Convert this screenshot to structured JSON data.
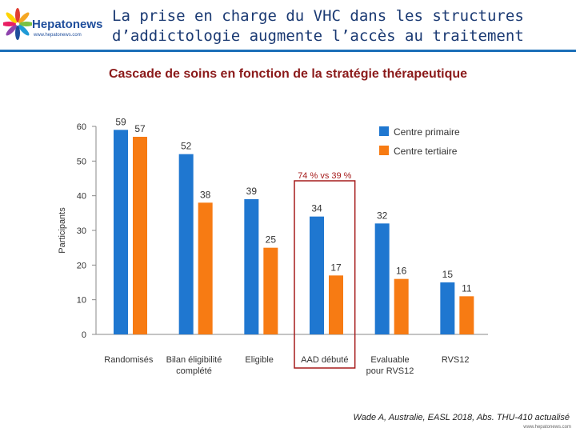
{
  "header": {
    "title_line1": "La prise en charge du VHC dans les structures",
    "title_line2": "d’addictologie augmente l’accès au traitement",
    "logo_name": "Hepatonews",
    "logo_url": "www.hepatonews.com"
  },
  "colors": {
    "primaire": "#1f77d0",
    "tertiaire": "#f77b13",
    "title": "#1b3a73",
    "accent_red": "#a61c1c"
  },
  "chart_data": {
    "type": "bar",
    "title": "Cascade de soins en fonction de la stratégie thérapeutique",
    "ylabel": "Participants",
    "xlabel": "",
    "ylim": [
      0,
      60
    ],
    "yticks": [
      0,
      10,
      20,
      30,
      40,
      50,
      60
    ],
    "legend_position": "top-right",
    "categories": [
      "Randomisés",
      "Bilan éligibilité complété",
      "Eligible",
      "AAD débuté",
      "Evaluable pour RVS12",
      "RVS12"
    ],
    "category_lines": [
      [
        "Randomisés"
      ],
      [
        "Bilan éligibilité",
        "complété"
      ],
      [
        "Eligible"
      ],
      [
        "AAD débuté"
      ],
      [
        "Evaluable",
        "pour RVS12"
      ],
      [
        "RVS12"
      ]
    ],
    "series": [
      {
        "name": "Centre primaire",
        "values": [
          59,
          52,
          39,
          34,
          32,
          15
        ]
      },
      {
        "name": "Centre tertiaire",
        "values": [
          57,
          38,
          25,
          17,
          16,
          11
        ]
      }
    ],
    "annotation": "74 % vs 39 %",
    "highlight_category": "AAD débuté"
  },
  "footer": {
    "reference": "Wade A, Australie, EASL 2018, Abs. THU-410 actualisé",
    "url": "www.hepatonews.com"
  }
}
